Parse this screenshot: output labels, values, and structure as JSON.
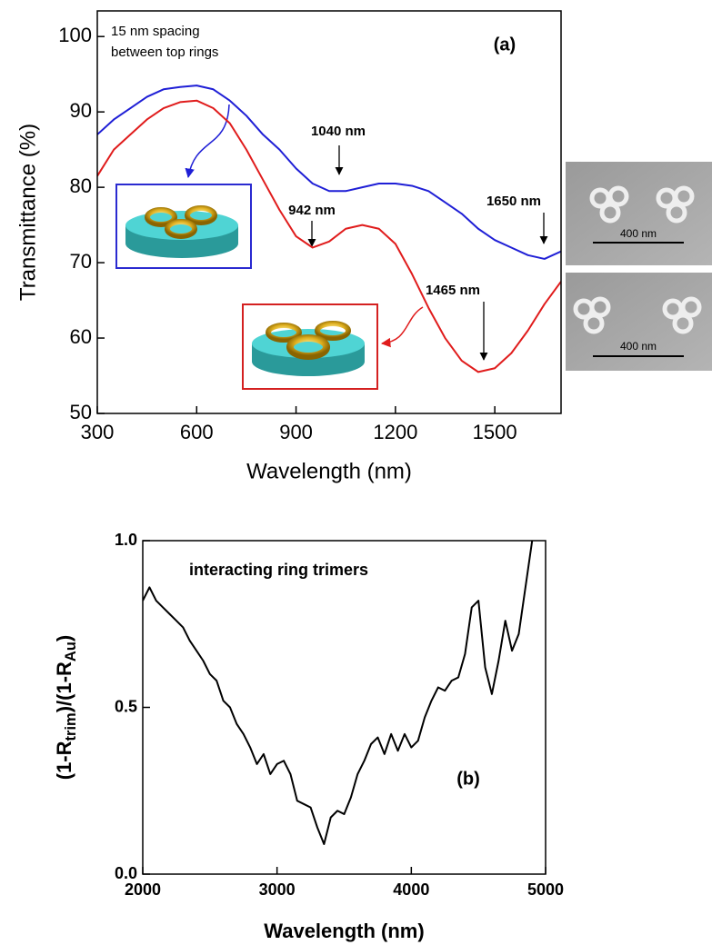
{
  "chart_data": [
    {
      "type": "line",
      "xlabel": "Wavelength (nm)",
      "ylabel": "Transmittance (%)",
      "annotations": [
        "15 nm spacing",
        "between top rings",
        "(a)",
        "1040 nm",
        "942 nm",
        "1650 nm",
        "1465 nm"
      ],
      "inset_labels": [
        "400 nm",
        "400 nm"
      ],
      "x": [
        300,
        350,
        400,
        450,
        500,
        550,
        600,
        650,
        700,
        750,
        800,
        850,
        900,
        950,
        1000,
        1050,
        1100,
        1150,
        1200,
        1250,
        1300,
        1350,
        1400,
        1450,
        1500,
        1550,
        1600,
        1650,
        1700
      ],
      "series": [
        {
          "color": "#1f1fd6",
          "values": [
            87,
            89,
            90.5,
            92,
            93,
            93.3,
            93.5,
            93,
            91.5,
            89.5,
            87,
            85,
            82.5,
            80.5,
            79.5,
            79.5,
            80,
            80.5,
            80.5,
            80.2,
            79.5,
            78,
            76.5,
            74.5,
            73,
            72,
            71,
            70.5,
            71.5
          ]
        },
        {
          "color": "#e01c1c",
          "values": [
            81.5,
            85,
            87,
            89,
            90.5,
            91.3,
            91.5,
            90.5,
            88.5,
            85,
            81,
            77,
            73.5,
            72,
            72.8,
            74.5,
            75,
            74.5,
            72.5,
            68.5,
            64,
            60,
            57,
            55.5,
            56,
            58,
            61,
            64.5,
            67.5
          ]
        }
      ],
      "xlim": [
        300,
        1700
      ],
      "ylim": [
        50,
        103.4
      ],
      "xticks": [
        300,
        600,
        900,
        1200,
        1500
      ],
      "yticks": [
        50,
        60,
        70,
        80,
        90,
        100
      ]
    },
    {
      "type": "line",
      "xlabel": "Wavelength (nm)",
      "ylabel": [
        "(1-R",
        "trim",
        ")/(1-R",
        "Au",
        ")"
      ],
      "annotations": [
        "interacting ring trimers",
        "(b)"
      ],
      "x": [
        2000,
        2050,
        2100,
        2150,
        2200,
        2250,
        2300,
        2350,
        2400,
        2450,
        2500,
        2550,
        2600,
        2650,
        2700,
        2750,
        2800,
        2850,
        2900,
        2950,
        3000,
        3050,
        3100,
        3150,
        3200,
        3250,
        3300,
        3350,
        3400,
        3450,
        3500,
        3550,
        3600,
        3650,
        3700,
        3750,
        3800,
        3850,
        3900,
        3950,
        4000,
        4050,
        4100,
        4150,
        4200,
        4250,
        4300,
        4350,
        4400,
        4450,
        4500,
        4550,
        4600,
        4650,
        4700,
        4750,
        4800,
        4850,
        4900
      ],
      "series": [
        {
          "color": "#000000",
          "values": [
            0.82,
            0.86,
            0.82,
            0.8,
            0.78,
            0.76,
            0.74,
            0.7,
            0.67,
            0.64,
            0.6,
            0.58,
            0.52,
            0.5,
            0.45,
            0.42,
            0.38,
            0.33,
            0.36,
            0.3,
            0.33,
            0.34,
            0.3,
            0.22,
            0.21,
            0.2,
            0.14,
            0.09,
            0.17,
            0.19,
            0.18,
            0.23,
            0.3,
            0.34,
            0.39,
            0.41,
            0.36,
            0.42,
            0.37,
            0.42,
            0.38,
            0.4,
            0.47,
            0.52,
            0.56,
            0.55,
            0.58,
            0.59,
            0.66,
            0.8,
            0.82,
            0.62,
            0.54,
            0.64,
            0.76,
            0.67,
            0.72,
            0.86,
            1.0
          ]
        }
      ],
      "xlim": [
        2000,
        5000
      ],
      "ylim": [
        0,
        1
      ],
      "xticks": [
        2000,
        3000,
        4000,
        5000
      ],
      "yticks": [
        {
          "value": 0,
          "label": "0.0"
        },
        0.5,
        {
          "value": 1,
          "label": "1.0"
        }
      ]
    }
  ]
}
